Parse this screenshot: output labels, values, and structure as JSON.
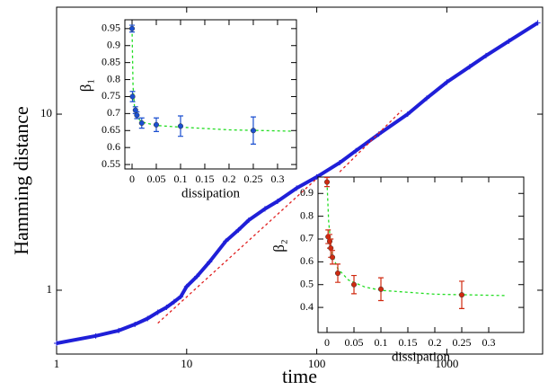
{
  "chart_data": [
    {
      "type": "line",
      "xlabel": "time",
      "ylabel": "Hamming distance",
      "xlog": true,
      "ylog": true,
      "xlim": [
        1,
        5450
      ],
      "ylim": [
        0.434,
        40.5
      ],
      "xticks": [
        1,
        10,
        100,
        1000
      ],
      "yticks": [
        1,
        10
      ],
      "series": [
        {
          "color": "#1f1fd8",
          "style": "markers+line",
          "x": [
            1,
            2,
            3,
            4,
            5,
            6,
            7,
            8,
            9,
            10,
            12,
            15,
            20,
            25,
            30,
            40,
            50,
            70,
            100,
            150,
            200,
            300,
            500,
            700,
            1000,
            1500,
            2000,
            3000,
            5000
          ],
          "values": [
            0.5,
            0.55,
            0.59,
            0.64,
            0.69,
            0.75,
            0.8,
            0.86,
            0.92,
            1.05,
            1.2,
            1.45,
            1.9,
            2.2,
            2.5,
            2.9,
            3.2,
            3.8,
            4.4,
            5.3,
            6.2,
            7.7,
            10,
            12.3,
            15.2,
            18.6,
            21.5,
            26,
            33
          ]
        },
        {
          "color": "#e02020",
          "style": "dashed",
          "x": [
            6,
            100
          ],
          "values": [
            0.65,
            4.3
          ]
        },
        {
          "color": "#e02020",
          "style": "dashed",
          "x": [
            150,
            450
          ],
          "values": [
            4.7,
            10.5
          ]
        }
      ]
    },
    {
      "type": "errorbar",
      "xlabel": "dissipation",
      "ylabel": "β₁",
      "xlim": [
        -0.0148,
        0.339
      ],
      "ylim": [
        0.537,
        0.976
      ],
      "xticks": [
        0,
        0.05,
        0.1,
        0.15,
        0.2,
        0.25,
        0.3
      ],
      "yticks": [
        0.55,
        0.6,
        0.65,
        0.7,
        0.75,
        0.8,
        0.85,
        0.9,
        0.95
      ],
      "color": "#1a4fd0",
      "x": [
        0,
        0.001,
        0.007,
        0.01,
        0.02,
        0.05,
        0.1,
        0.25
      ],
      "values": [
        0.95,
        0.75,
        0.71,
        0.695,
        0.672,
        0.667,
        0.663,
        0.65
      ],
      "errors": [
        0.01,
        0.015,
        0.01,
        0.01,
        0.015,
        0.02,
        0.03,
        0.04
      ],
      "fit": {
        "color": "#22dd22",
        "x": [
          0,
          0.002,
          0.005,
          0.01,
          0.02,
          0.05,
          0.1,
          0.2,
          0.33
        ],
        "values": [
          0.95,
          0.78,
          0.72,
          0.69,
          0.675,
          0.665,
          0.66,
          0.652,
          0.648
        ]
      }
    },
    {
      "type": "errorbar",
      "xlabel": "dissipation",
      "ylabel": "β₂",
      "xlim": [
        -0.0167,
        0.365
      ],
      "ylim": [
        0.29,
        0.972
      ],
      "xticks": [
        0,
        0.05,
        0.1,
        0.15,
        0.2,
        0.25,
        0.3
      ],
      "yticks": [
        0.4,
        0.5,
        0.6,
        0.7,
        0.8,
        0.9
      ],
      "color": "#d02a10",
      "x": [
        0,
        0.002,
        0.005,
        0.007,
        0.01,
        0.02,
        0.05,
        0.1,
        0.25
      ],
      "values": [
        0.95,
        0.71,
        0.69,
        0.66,
        0.62,
        0.55,
        0.5,
        0.48,
        0.455
      ],
      "errors": [
        0.02,
        0.03,
        0.03,
        0.04,
        0.03,
        0.04,
        0.04,
        0.05,
        0.06
      ],
      "fit": {
        "color": "#22dd22",
        "x": [
          0,
          0.003,
          0.006,
          0.01,
          0.02,
          0.04,
          0.07,
          0.1,
          0.2,
          0.33
        ],
        "values": [
          0.95,
          0.78,
          0.7,
          0.63,
          0.57,
          0.52,
          0.49,
          0.475,
          0.458,
          0.452
        ]
      }
    }
  ]
}
